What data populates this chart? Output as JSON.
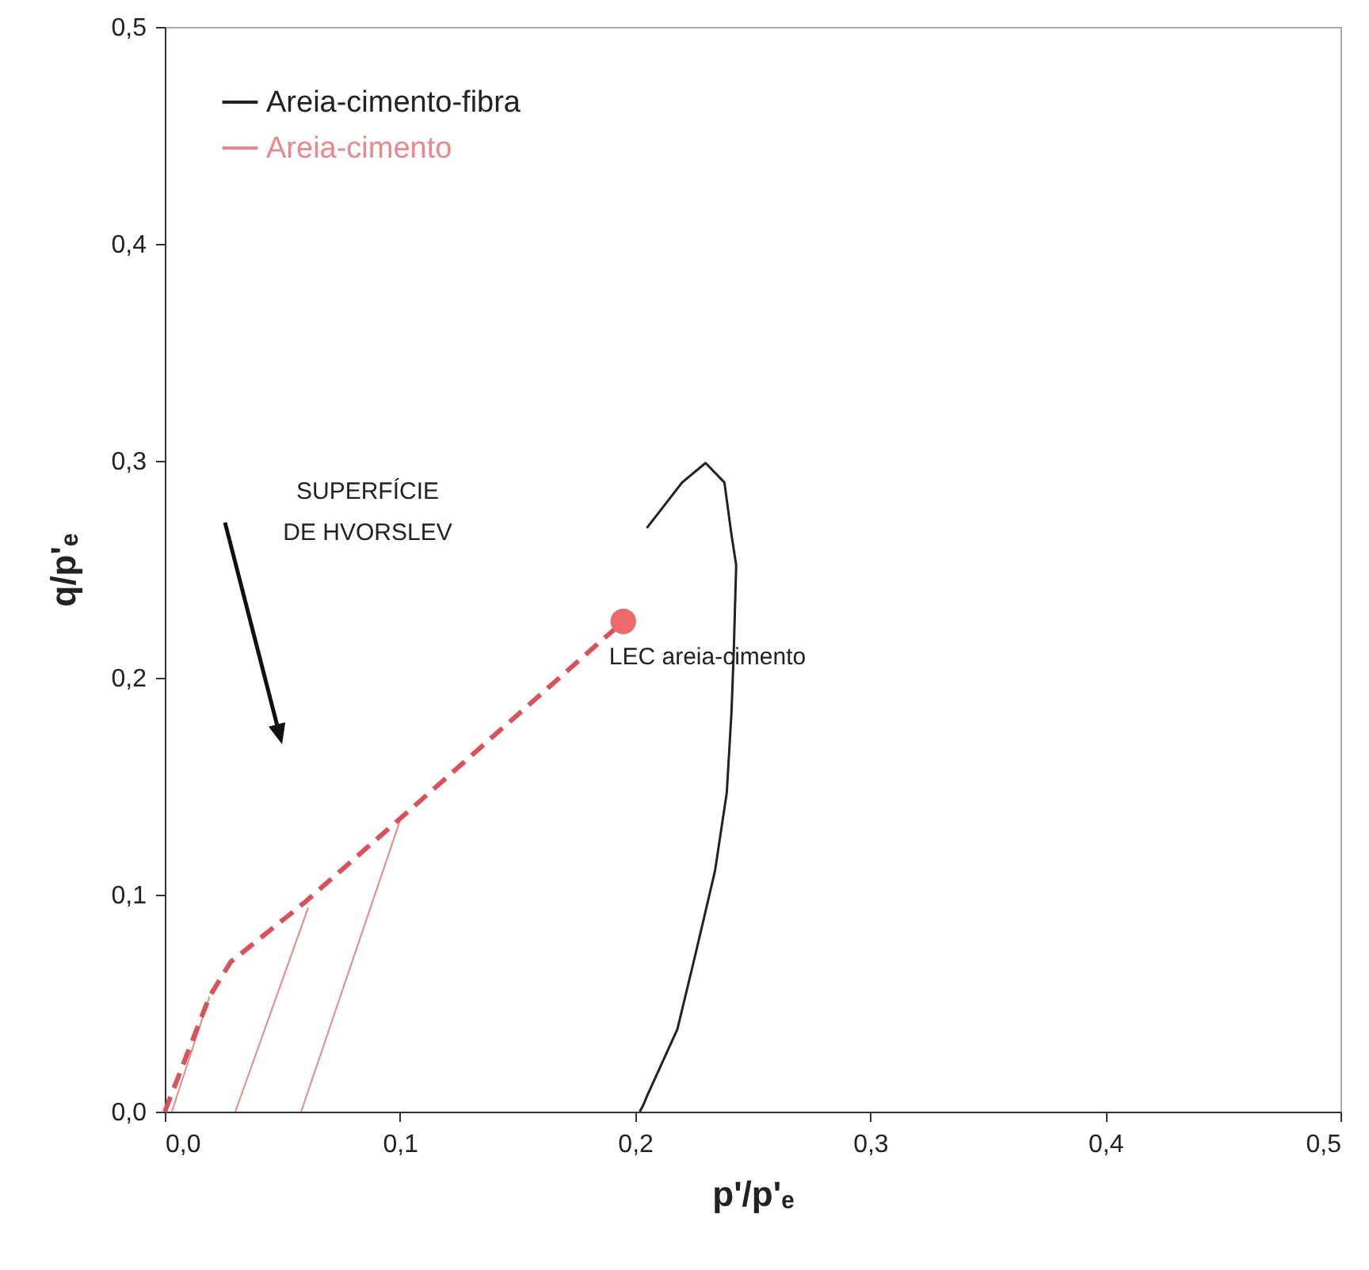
{
  "chart_data": {
    "type": "line",
    "xlabel": "p'/p'ₑ",
    "ylabel": "q/p'ₑ",
    "xlim": [
      0,
      0.5
    ],
    "xticks": [
      {
        "value": 0,
        "label": "0,0"
      },
      {
        "value": 0.1,
        "label": "0,1"
      },
      {
        "value": 0.2,
        "label": "0,2"
      },
      {
        "value": 0.3,
        "label": "0,3"
      },
      {
        "value": 0.4,
        "label": "0,4"
      },
      {
        "value": 0.5,
        "label": "0,5"
      }
    ],
    "ylim": [
      0,
      0.5
    ],
    "yticks": [
      {
        "value": 0,
        "label": "0,0"
      },
      {
        "value": 0.1,
        "label": "0,1"
      },
      {
        "value": 0.2,
        "label": "0,2"
      },
      {
        "value": 0.3,
        "label": "0,3"
      },
      {
        "value": 0.4,
        "label": "0,4"
      },
      {
        "value": 0.5,
        "label": "0,5"
      }
    ],
    "grid": false,
    "legend": "top left",
    "series": [
      {
        "name": "Areia-cimento-fibra",
        "color": "#222222",
        "line_style": "solid",
        "x": [
          0.202,
          0.2035,
          0.205,
          0.218,
          0.226,
          0.234,
          0.239,
          0.241,
          0.242,
          0.243,
          0.241,
          0.238,
          0.23,
          0.22,
          0.205
        ],
        "values": [
          0,
          0.003,
          0.007,
          0.038,
          0.074,
          0.111,
          0.147,
          0.184,
          0.213,
          0.252,
          0.266,
          0.29,
          0.299,
          0.29,
          0.269
        ]
      },
      {
        "name": "Areia-cimento",
        "color": "#e8878c",
        "line_style": "solid",
        "x": [
          0.003,
          0.019
        ],
        "values": [
          0,
          0.053
        ]
      },
      {
        "color": "#e8878c",
        "line_style": "solid",
        "x": [
          0.03,
          0.061
        ],
        "values": [
          0,
          0.094
        ]
      },
      {
        "color": "#e8878c",
        "line_style": "solid",
        "x": [
          0.058,
          0.1
        ],
        "values": [
          0,
          0.134
        ]
      },
      {
        "color": "#d9515a",
        "line_style": "dashed",
        "x": [
          0,
          0.019,
          0.028,
          0.059,
          0.1,
          0.195
        ],
        "values": [
          0,
          0.053,
          0.069,
          0.096,
          0.135,
          0.226
        ]
      },
      {
        "type": "scatter",
        "marker": "circle",
        "color": "#ee6a6a",
        "x": [
          0.195
        ],
        "values": [
          0.226
        ]
      }
    ],
    "annotations": [
      "SUPERFÍCIE\nDE HVORSLEV",
      {
        "text": "LEC areia-cimento",
        "x": 0.195,
        "y": 0.226
      }
    ]
  }
}
